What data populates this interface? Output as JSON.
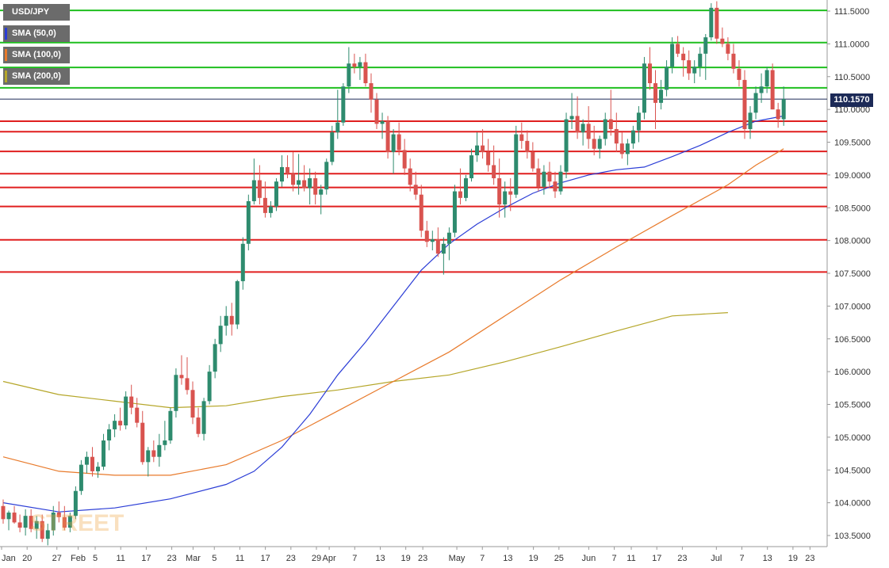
{
  "symbol": "USD/JPY",
  "legend": [
    {
      "label": "SMA (50,0)",
      "color": "#2b3dd6"
    },
    {
      "label": "SMA (100,0)",
      "color": "#e87a2b"
    },
    {
      "label": "SMA (200,0)",
      "color": "#b5a629"
    }
  ],
  "last_price": "110.1570",
  "watermark": "STREET",
  "colors": {
    "up": "#2e8b6e",
    "down": "#d9534f",
    "support": "#e01f1f",
    "resistance": "#1fbf1f",
    "last_line": "#1c2a57"
  },
  "chart_data": {
    "type": "candlestick",
    "ylim": [
      103.35,
      111.65
    ],
    "y_ticks": [
      "111.5000",
      "111.0000",
      "110.5000",
      "110.0000",
      "109.5000",
      "109.0000",
      "108.5000",
      "108.0000",
      "107.5000",
      "107.0000",
      "106.5000",
      "106.0000",
      "105.5000",
      "105.0000",
      "104.5000",
      "104.0000",
      "103.5000"
    ],
    "x_labels": [
      {
        "label": "Jan",
        "day": 0
      },
      {
        "label": "20",
        "day": 6
      },
      {
        "label": "27",
        "day": 13
      },
      {
        "label": "Feb",
        "day": 18
      },
      {
        "label": "5",
        "day": 22
      },
      {
        "label": "11",
        "day": 28
      },
      {
        "label": "17",
        "day": 34
      },
      {
        "label": "23",
        "day": 40
      },
      {
        "label": "Mar",
        "day": 45
      },
      {
        "label": "5",
        "day": 50
      },
      {
        "label": "11",
        "day": 56
      },
      {
        "label": "17",
        "day": 62
      },
      {
        "label": "23",
        "day": 68
      },
      {
        "label": "29",
        "day": 74
      },
      {
        "label": "Apr",
        "day": 77
      },
      {
        "label": "7",
        "day": 83
      },
      {
        "label": "13",
        "day": 89
      },
      {
        "label": "19",
        "day": 95
      },
      {
        "label": "23",
        "day": 99
      },
      {
        "label": "May",
        "day": 107
      },
      {
        "label": "7",
        "day": 113
      },
      {
        "label": "13",
        "day": 119
      },
      {
        "label": "19",
        "day": 125
      },
      {
        "label": "25",
        "day": 131
      },
      {
        "label": "Jun",
        "day": 138
      },
      {
        "label": "7",
        "day": 144
      },
      {
        "label": "11",
        "day": 148
      },
      {
        "label": "17",
        "day": 154
      },
      {
        "label": "23",
        "day": 160
      },
      {
        "label": "Jul",
        "day": 168
      },
      {
        "label": "7",
        "day": 174
      },
      {
        "label": "13",
        "day": 180
      },
      {
        "label": "19",
        "day": 186
      },
      {
        "label": "23",
        "day": 190
      }
    ],
    "x_range": [
      0,
      195
    ],
    "support_lines": [
      109.82,
      109.66,
      109.36,
      109.02,
      108.81,
      108.52,
      108.01,
      107.52
    ],
    "resistance_lines": [
      111.51,
      111.02,
      110.64,
      110.33
    ],
    "last_price_value": 110.157,
    "candles": [
      [
        0,
        103.95,
        104.05,
        103.68,
        103.75
      ],
      [
        1,
        103.75,
        103.88,
        103.58,
        103.85
      ],
      [
        2,
        103.85,
        103.95,
        103.68,
        103.7
      ],
      [
        3,
        103.7,
        103.82,
        103.55,
        103.62
      ],
      [
        4,
        103.62,
        103.9,
        103.5,
        103.8
      ],
      [
        5,
        103.8,
        103.9,
        103.55,
        103.6
      ],
      [
        6,
        103.6,
        103.8,
        103.45,
        103.72
      ],
      [
        7,
        103.72,
        103.82,
        103.4,
        103.45
      ],
      [
        8,
        103.45,
        103.68,
        103.35,
        103.58
      ],
      [
        9,
        103.58,
        103.95,
        103.5,
        103.85
      ],
      [
        10,
        103.85,
        104.02,
        103.7,
        103.78
      ],
      [
        11,
        103.78,
        103.95,
        103.58,
        103.62
      ],
      [
        12,
        103.62,
        103.85,
        103.55,
        103.8
      ],
      [
        13,
        103.8,
        104.25,
        103.75,
        104.18
      ],
      [
        14,
        104.18,
        104.65,
        104.12,
        104.58
      ],
      [
        15,
        104.58,
        104.78,
        104.45,
        104.7
      ],
      [
        16,
        104.7,
        104.85,
        104.4,
        104.48
      ],
      [
        17,
        104.48,
        104.62,
        104.38,
        104.55
      ],
      [
        18,
        104.55,
        105.05,
        104.5,
        104.95
      ],
      [
        19,
        104.95,
        105.2,
        104.8,
        105.12
      ],
      [
        20,
        105.12,
        105.35,
        105.0,
        105.25
      ],
      [
        21,
        105.25,
        105.45,
        105.1,
        105.18
      ],
      [
        22,
        105.18,
        105.7,
        105.12,
        105.62
      ],
      [
        23,
        105.62,
        105.8,
        105.35,
        105.45
      ],
      [
        24,
        105.45,
        105.6,
        105.15,
        105.22
      ],
      [
        25,
        105.22,
        105.4,
        104.58,
        104.62
      ],
      [
        26,
        104.62,
        104.85,
        104.4,
        104.8
      ],
      [
        27,
        104.8,
        104.95,
        104.62,
        104.7
      ],
      [
        28,
        104.7,
        105.05,
        104.55,
        104.88
      ],
      [
        29,
        104.88,
        105.25,
        104.8,
        104.95
      ],
      [
        30,
        104.95,
        105.45,
        104.9,
        105.4
      ],
      [
        31,
        105.4,
        106.05,
        105.3,
        105.95
      ],
      [
        32,
        105.95,
        106.25,
        105.8,
        105.9
      ],
      [
        33,
        105.9,
        106.22,
        105.65,
        105.72
      ],
      [
        34,
        105.72,
        105.85,
        105.2,
        105.3
      ],
      [
        35,
        105.3,
        105.45,
        105.0,
        105.05
      ],
      [
        36,
        105.05,
        105.6,
        104.95,
        105.55
      ],
      [
        37,
        105.55,
        106.1,
        105.5,
        106.0
      ],
      [
        38,
        106.0,
        106.5,
        105.9,
        106.42
      ],
      [
        39,
        106.42,
        106.85,
        106.3,
        106.7
      ],
      [
        40,
        106.7,
        107.0,
        106.55,
        106.85
      ],
      [
        41,
        106.85,
        107.05,
        106.55,
        106.72
      ],
      [
        42,
        106.72,
        107.4,
        106.65,
        107.38
      ],
      [
        43,
        107.38,
        108.05,
        107.25,
        107.95
      ],
      [
        44,
        107.95,
        108.7,
        107.85,
        108.6
      ],
      [
        45,
        108.6,
        109.25,
        108.55,
        108.92
      ],
      [
        46,
        108.92,
        109.15,
        108.55,
        108.65
      ],
      [
        47,
        108.65,
        108.9,
        108.35,
        108.42
      ],
      [
        48,
        108.42,
        108.6,
        108.35,
        108.52
      ],
      [
        49,
        108.52,
        108.95,
        108.45,
        108.9
      ],
      [
        50,
        108.9,
        109.3,
        108.82,
        109.12
      ],
      [
        51,
        109.12,
        109.3,
        108.95,
        109.02
      ],
      [
        52,
        109.02,
        109.35,
        108.75,
        108.85
      ],
      [
        53,
        108.85,
        109.32,
        108.7,
        108.92
      ],
      [
        54,
        108.92,
        109.15,
        108.75,
        108.8
      ],
      [
        55,
        108.8,
        109.1,
        108.55,
        108.95
      ],
      [
        56,
        108.95,
        109.05,
        108.55,
        108.7
      ],
      [
        57,
        108.7,
        108.85,
        108.4,
        108.78
      ],
      [
        58,
        108.78,
        109.25,
        108.7,
        109.2
      ],
      [
        59,
        109.2,
        109.75,
        109.15,
        109.65
      ],
      [
        60,
        109.65,
        110.3,
        109.55,
        109.8
      ],
      [
        61,
        109.8,
        110.4,
        109.75,
        110.35
      ],
      [
        62,
        110.35,
        110.95,
        110.25,
        110.7
      ],
      [
        63,
        110.7,
        110.85,
        110.55,
        110.65
      ],
      [
        64,
        110.65,
        110.8,
        110.45,
        110.72
      ],
      [
        65,
        110.72,
        110.85,
        110.35,
        110.4
      ],
      [
        66,
        110.4,
        110.55,
        109.95,
        110.15
      ],
      [
        67,
        110.15,
        110.25,
        109.7,
        109.78
      ],
      [
        68,
        109.78,
        109.95,
        109.55,
        109.82
      ],
      [
        69,
        109.82,
        109.9,
        109.25,
        109.35
      ],
      [
        70,
        109.35,
        109.7,
        109.02,
        109.62
      ],
      [
        71,
        109.62,
        109.8,
        109.3,
        109.38
      ],
      [
        72,
        109.38,
        109.55,
        109.0,
        109.1
      ],
      [
        73,
        109.1,
        109.25,
        108.75,
        108.85
      ],
      [
        74,
        108.85,
        109.05,
        108.62,
        108.7
      ],
      [
        75,
        108.7,
        108.85,
        108.05,
        108.15
      ],
      [
        76,
        108.15,
        108.3,
        107.9,
        107.98
      ],
      [
        77,
        107.98,
        108.15,
        107.85,
        108.02
      ],
      [
        78,
        108.02,
        108.2,
        107.75,
        107.8
      ],
      [
        79,
        107.8,
        108.05,
        107.48,
        107.95
      ],
      [
        80,
        107.95,
        108.2,
        107.7,
        108.12
      ],
      [
        81,
        108.12,
        108.85,
        108.05,
        108.75
      ],
      [
        82,
        108.75,
        109.1,
        108.55,
        108.65
      ],
      [
        83,
        108.65,
        109.0,
        108.6,
        108.95
      ],
      [
        84,
        108.95,
        109.4,
        108.9,
        109.3
      ],
      [
        85,
        109.3,
        109.65,
        109.2,
        109.45
      ],
      [
        86,
        109.45,
        109.7,
        109.25,
        109.35
      ],
      [
        87,
        109.35,
        109.55,
        109.05,
        109.15
      ],
      [
        88,
        109.15,
        109.45,
        108.85,
        108.95
      ],
      [
        89,
        108.95,
        109.25,
        108.35,
        108.55
      ],
      [
        90,
        108.55,
        108.9,
        108.35,
        108.75
      ],
      [
        91,
        108.75,
        108.95,
        108.45,
        108.7
      ],
      [
        92,
        108.7,
        109.75,
        108.65,
        109.62
      ],
      [
        93,
        109.62,
        109.8,
        109.4,
        109.52
      ],
      [
        94,
        109.52,
        109.68,
        109.25,
        109.35
      ],
      [
        95,
        109.35,
        109.5,
        109.05,
        109.1
      ],
      [
        96,
        109.1,
        109.25,
        108.75,
        108.82
      ],
      [
        97,
        108.82,
        109.15,
        108.7,
        109.05
      ],
      [
        98,
        109.05,
        109.2,
        108.8,
        108.9
      ],
      [
        99,
        108.9,
        109.05,
        108.65,
        108.75
      ],
      [
        100,
        108.75,
        109.15,
        108.7,
        109.05
      ],
      [
        101,
        109.05,
        109.95,
        108.95,
        109.85
      ],
      [
        102,
        109.85,
        110.25,
        109.7,
        109.9
      ],
      [
        103,
        109.9,
        110.2,
        109.55,
        109.65
      ],
      [
        104,
        109.65,
        109.85,
        109.45,
        109.78
      ],
      [
        105,
        109.78,
        110.05,
        109.4,
        109.55
      ],
      [
        106,
        109.55,
        109.75,
        109.3,
        109.4
      ],
      [
        107,
        109.4,
        109.6,
        109.25,
        109.55
      ],
      [
        108,
        109.55,
        109.95,
        109.45,
        109.85
      ],
      [
        109,
        109.85,
        110.3,
        109.6,
        109.7
      ],
      [
        110,
        109.7,
        109.95,
        109.35,
        109.48
      ],
      [
        111,
        109.48,
        109.65,
        109.25,
        109.32
      ],
      [
        112,
        109.32,
        109.55,
        109.15,
        109.48
      ],
      [
        113,
        109.48,
        109.75,
        109.4,
        109.68
      ],
      [
        114,
        109.68,
        110.05,
        109.5,
        109.95
      ],
      [
        115,
        109.95,
        110.8,
        109.85,
        110.7
      ],
      [
        116,
        110.7,
        110.95,
        110.3,
        110.4
      ],
      [
        117,
        110.4,
        110.6,
        109.7,
        110.1
      ],
      [
        118,
        110.1,
        110.45,
        110.0,
        110.3
      ],
      [
        119,
        110.3,
        110.75,
        110.2,
        110.65
      ],
      [
        120,
        110.65,
        111.1,
        110.55,
        111.0
      ],
      [
        121,
        111.0,
        111.12,
        110.8,
        110.85
      ],
      [
        122,
        110.85,
        110.95,
        110.5,
        110.75
      ],
      [
        123,
        110.75,
        110.9,
        110.45,
        110.55
      ],
      [
        124,
        110.55,
        110.75,
        110.4,
        110.65
      ],
      [
        125,
        110.65,
        110.95,
        110.5,
        110.85
      ],
      [
        126,
        110.85,
        111.15,
        110.45,
        111.1
      ],
      [
        127,
        111.1,
        111.62,
        111.05,
        111.55
      ],
      [
        128,
        111.55,
        111.65,
        111.0,
        111.08
      ],
      [
        129,
        111.08,
        111.25,
        110.95,
        111.0
      ],
      [
        130,
        111.0,
        111.1,
        110.75,
        110.85
      ],
      [
        131,
        110.85,
        111.0,
        110.55,
        110.62
      ],
      [
        132,
        110.62,
        110.75,
        110.35,
        110.45
      ],
      [
        133,
        110.45,
        110.6,
        109.55,
        109.7
      ],
      [
        134,
        109.7,
        110.05,
        109.55,
        109.95
      ],
      [
        135,
        109.95,
        110.35,
        109.85,
        110.25
      ],
      [
        136,
        110.25,
        110.55,
        110.1,
        110.35
      ],
      [
        137,
        110.35,
        110.65,
        110.25,
        110.6
      ],
      [
        138,
        110.6,
        110.7,
        110.0,
        110.0
      ],
      [
        139,
        110.0,
        110.1,
        109.72,
        109.85
      ],
      [
        140,
        109.85,
        110.35,
        109.75,
        110.157
      ]
    ],
    "sma50": [
      [
        0,
        104.0
      ],
      [
        10,
        103.86
      ],
      [
        20,
        103.92
      ],
      [
        30,
        104.06
      ],
      [
        40,
        104.28
      ],
      [
        45,
        104.48
      ],
      [
        50,
        104.85
      ],
      [
        55,
        105.35
      ],
      [
        60,
        105.95
      ],
      [
        65,
        106.45
      ],
      [
        70,
        107.0
      ],
      [
        75,
        107.55
      ],
      [
        80,
        107.95
      ],
      [
        85,
        108.25
      ],
      [
        90,
        108.5
      ],
      [
        95,
        108.72
      ],
      [
        100,
        108.88
      ],
      [
        105,
        109.0
      ],
      [
        110,
        109.08
      ],
      [
        115,
        109.12
      ],
      [
        120,
        109.28
      ],
      [
        125,
        109.45
      ],
      [
        130,
        109.65
      ],
      [
        135,
        109.82
      ],
      [
        140,
        109.9
      ]
    ],
    "sma100": [
      [
        0,
        104.7
      ],
      [
        10,
        104.48
      ],
      [
        20,
        104.42
      ],
      [
        30,
        104.42
      ],
      [
        40,
        104.58
      ],
      [
        50,
        104.95
      ],
      [
        60,
        105.4
      ],
      [
        70,
        105.85
      ],
      [
        80,
        106.3
      ],
      [
        90,
        106.85
      ],
      [
        100,
        107.4
      ],
      [
        110,
        107.9
      ],
      [
        120,
        108.38
      ],
      [
        130,
        108.85
      ],
      [
        135,
        109.15
      ],
      [
        140,
        109.4
      ]
    ],
    "sma200": [
      [
        0,
        105.85
      ],
      [
        10,
        105.65
      ],
      [
        20,
        105.55
      ],
      [
        30,
        105.45
      ],
      [
        40,
        105.48
      ],
      [
        50,
        105.62
      ],
      [
        60,
        105.72
      ],
      [
        70,
        105.85
      ],
      [
        80,
        105.95
      ],
      [
        90,
        106.15
      ],
      [
        100,
        106.38
      ],
      [
        110,
        106.62
      ],
      [
        120,
        106.85
      ],
      [
        130,
        106.9
      ]
    ]
  }
}
